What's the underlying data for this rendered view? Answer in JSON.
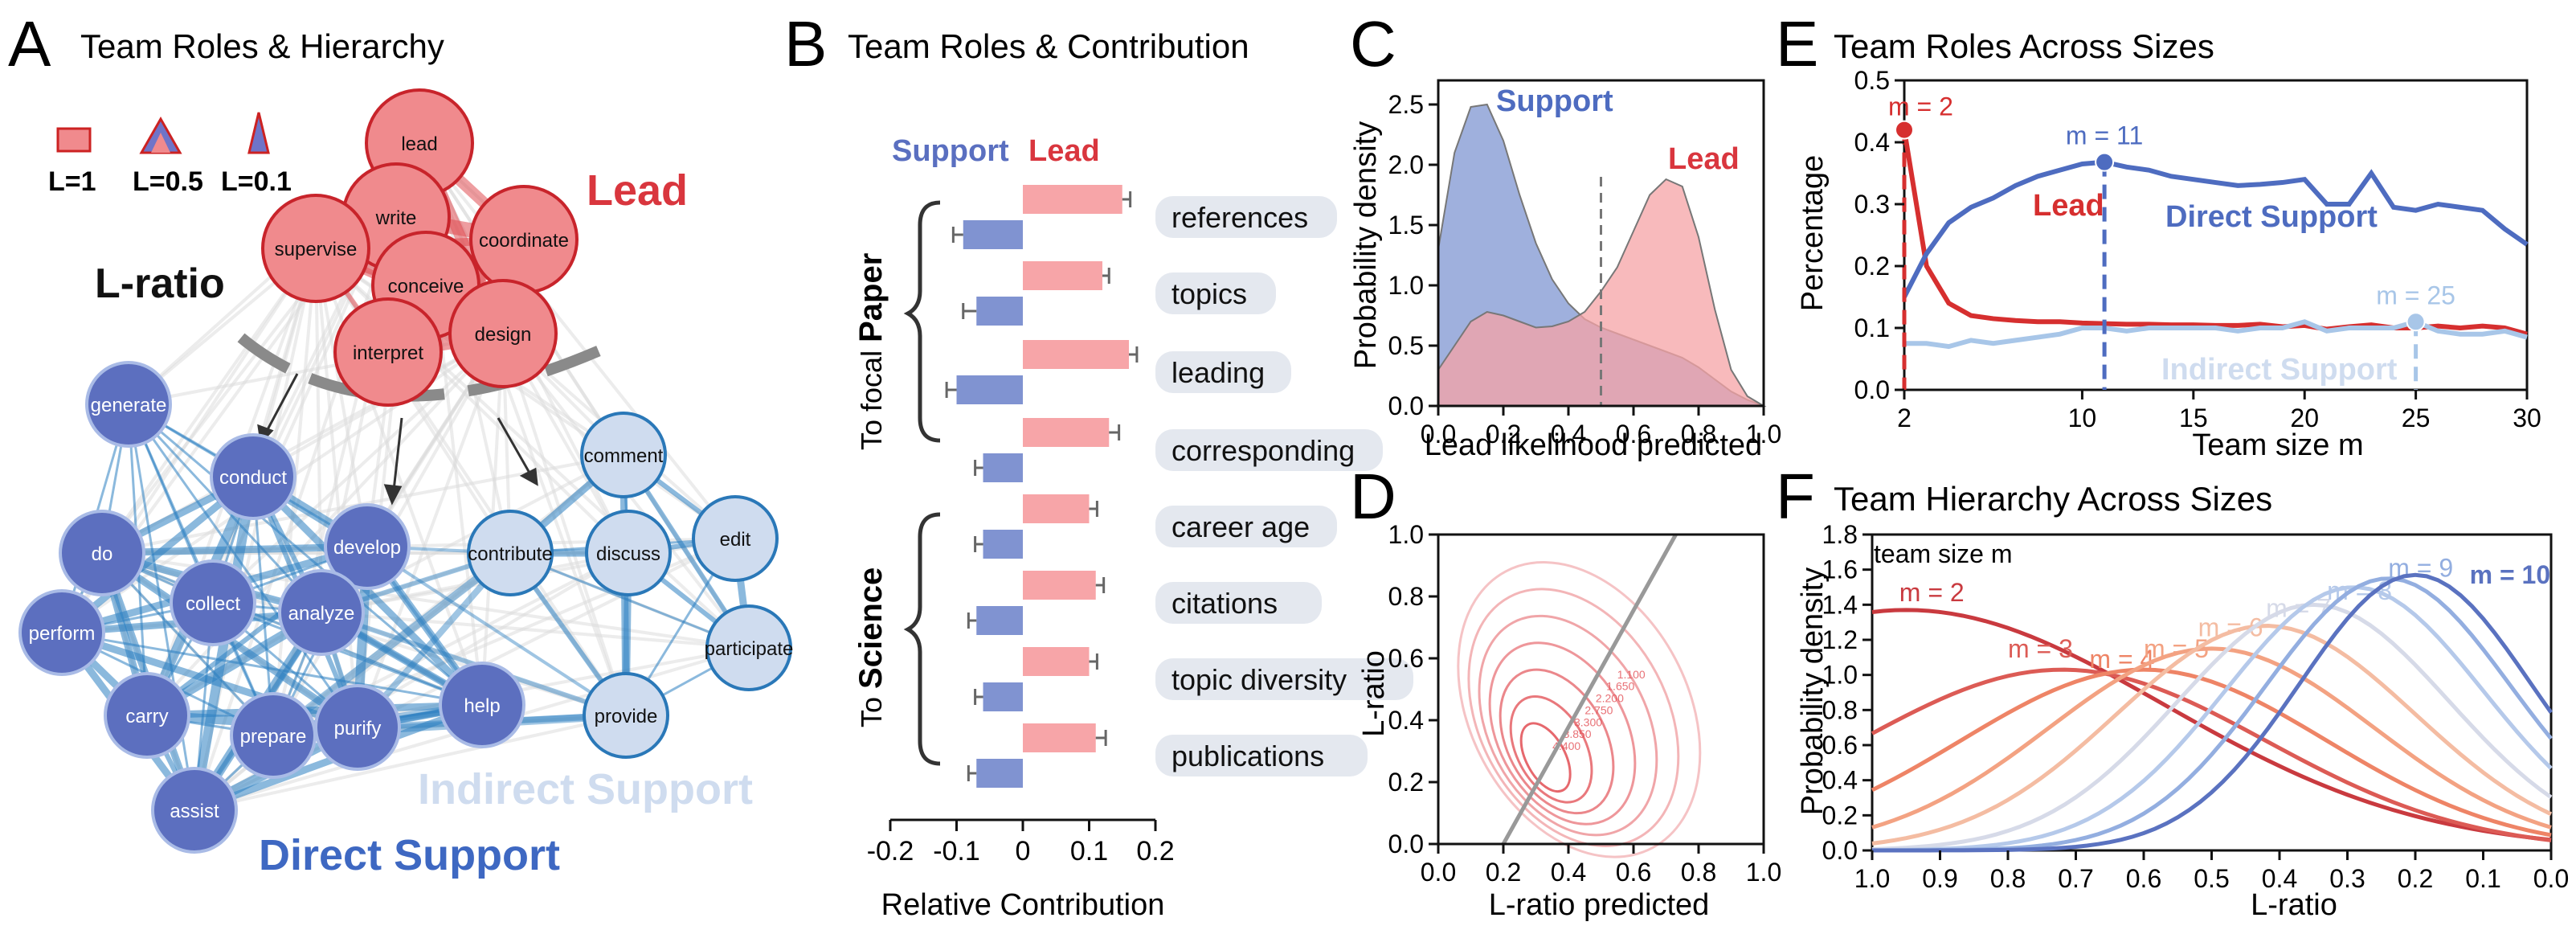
{
  "figure": {
    "panels": {
      "A": {
        "letter": "A",
        "title": "Team Roles & Hierarchy"
      },
      "B": {
        "letter": "B",
        "title": "Team Roles & Contribution"
      },
      "C": {
        "letter": "C"
      },
      "D": {
        "letter": "D"
      },
      "E": {
        "letter": "E",
        "title": "Team Roles Across Sizes"
      },
      "F": {
        "letter": "F",
        "title": "Team Hierarchy Across Sizes"
      }
    }
  },
  "panel_a": {
    "legend": [
      "L=1",
      "L=0.5",
      "L=0.1"
    ],
    "lratio_label": "L-ratio",
    "lead_label": "Lead",
    "direct_label": "Direct Support",
    "indirect_label": "Indirect Support",
    "lead_nodes": [
      "lead",
      "write",
      "coordinate",
      "supervise",
      "conceive",
      "interpret",
      "design"
    ],
    "direct_nodes": [
      "generate",
      "conduct",
      "do",
      "develop",
      "collect",
      "analyze",
      "perform",
      "carry",
      "prepare",
      "purify",
      "help",
      "assist"
    ],
    "indirect_nodes": [
      "comment",
      "edit",
      "contribute",
      "discuss",
      "participate",
      "provide"
    ],
    "colors": {
      "lead": "#f08a8d",
      "direct": "#5c6fbf",
      "indirect": "#cfdcef",
      "edge_direct": "#2b7fc1",
      "edge_lead": "#e04c52"
    }
  },
  "chart_data": [
    {
      "panel": "B",
      "type": "bar",
      "orientation": "horizontal",
      "legend": [
        "Support",
        "Lead"
      ],
      "categories": [
        "references",
        "topics",
        "leading",
        "corresponding",
        "career age",
        "citations",
        "topic diversity",
        "publications"
      ],
      "groups": [
        {
          "label_prefix": "To focal",
          "label_bold": "Paper"
        },
        {
          "label_prefix": "To",
          "label_bold": "Science"
        }
      ],
      "series": [
        {
          "name": "Support",
          "color": "#8093d1",
          "values": [
            -0.09,
            -0.07,
            -0.1,
            -0.06,
            -0.06,
            -0.07,
            -0.06,
            -0.07
          ],
          "errors": [
            0.015,
            0.02,
            0.015,
            0.012,
            0.012,
            0.012,
            0.012,
            0.012
          ]
        },
        {
          "name": "Lead",
          "color": "#f7a5a8",
          "values": [
            0.15,
            0.12,
            0.16,
            0.13,
            0.1,
            0.11,
            0.1,
            0.11
          ],
          "errors": [
            0.012,
            0.01,
            0.012,
            0.015,
            0.012,
            0.012,
            0.012,
            0.015
          ]
        }
      ],
      "xlabel": "Relative Contribution",
      "xlim": [
        -0.2,
        0.2
      ],
      "xticks": [
        "-0.2",
        "-0.1",
        "0",
        "0.1",
        "0.2"
      ]
    },
    {
      "panel": "C",
      "type": "area",
      "xlabel": "Lead likelihood predicted",
      "ylabel": "Probability density",
      "xlim": [
        0,
        1
      ],
      "ylim": [
        0,
        2.7
      ],
      "xticks": [
        "0.0",
        "0.2",
        "0.4",
        "0.6",
        "0.8",
        "1.0"
      ],
      "yticks": [
        "0.0",
        "0.5",
        "1.0",
        "1.5",
        "2.0",
        "2.5"
      ],
      "threshold": 0.5,
      "series": [
        {
          "name": "Support",
          "color": "#7f95d1",
          "x": [
            0,
            0.05,
            0.1,
            0.15,
            0.2,
            0.25,
            0.3,
            0.35,
            0.4,
            0.45,
            0.5,
            0.55,
            0.6,
            0.65,
            0.7,
            0.75,
            0.8,
            0.85,
            0.9,
            0.95,
            1.0
          ],
          "y": [
            1.3,
            2.1,
            2.48,
            2.5,
            2.2,
            1.75,
            1.35,
            1.05,
            0.85,
            0.72,
            0.65,
            0.6,
            0.55,
            0.5,
            0.45,
            0.4,
            0.32,
            0.22,
            0.12,
            0.05,
            0.0
          ]
        },
        {
          "name": "Lead",
          "color": "#f6a3a6",
          "x": [
            0,
            0.05,
            0.1,
            0.15,
            0.2,
            0.25,
            0.3,
            0.35,
            0.4,
            0.45,
            0.5,
            0.55,
            0.6,
            0.65,
            0.7,
            0.75,
            0.8,
            0.85,
            0.9,
            0.95,
            1.0
          ],
          "y": [
            0.3,
            0.5,
            0.7,
            0.78,
            0.75,
            0.7,
            0.65,
            0.66,
            0.7,
            0.78,
            0.95,
            1.15,
            1.45,
            1.75,
            1.88,
            1.82,
            1.4,
            0.8,
            0.3,
            0.08,
            0.0
          ]
        }
      ]
    },
    {
      "panel": "D",
      "type": "scatter",
      "subtype": "density contour",
      "xlabel": "L-ratio predicted",
      "ylabel": "L-ratio",
      "xlim": [
        0,
        1
      ],
      "ylim": [
        0,
        1
      ],
      "xticks": [
        "0.0",
        "0.2",
        "0.4",
        "0.6",
        "0.8",
        "1.0"
      ],
      "yticks": [
        "0.0",
        "0.2",
        "0.4",
        "0.6",
        "0.8",
        "1.0"
      ],
      "contour_labels": [
        "4.400",
        "3.850",
        "3.300",
        "2.750",
        "2.200",
        "1.650",
        "1.100"
      ],
      "fit_line": {
        "x": [
          0.2,
          0.73
        ],
        "y": [
          0.0,
          1.0
        ]
      },
      "color": "#e24e54"
    },
    {
      "panel": "E",
      "type": "line",
      "xlabel": "Team size m",
      "ylabel": "Percentage",
      "xlim": [
        2,
        30
      ],
      "ylim": [
        0,
        0.5
      ],
      "xticks": [
        "2",
        "10",
        "15",
        "20",
        "25",
        "30"
      ],
      "yticks": [
        "0.0",
        "0.1",
        "0.2",
        "0.3",
        "0.4",
        "0.5"
      ],
      "x": [
        2,
        3,
        4,
        5,
        6,
        7,
        8,
        9,
        10,
        11,
        12,
        13,
        14,
        15,
        16,
        17,
        18,
        19,
        20,
        21,
        22,
        23,
        24,
        25,
        26,
        27,
        28,
        29,
        30
      ],
      "series": [
        {
          "name": "Lead",
          "color": "#d62f2f",
          "y": [
            0.42,
            0.2,
            0.14,
            0.12,
            0.115,
            0.112,
            0.11,
            0.11,
            0.108,
            0.107,
            0.106,
            0.106,
            0.105,
            0.105,
            0.104,
            0.104,
            0.106,
            0.102,
            0.104,
            0.098,
            0.102,
            0.105,
            0.1,
            0.1,
            0.103,
            0.1,
            0.103,
            0.1,
            0.09
          ]
        },
        {
          "name": "Direct Support",
          "color": "#4e6cc0",
          "y": [
            0.15,
            0.22,
            0.27,
            0.295,
            0.31,
            0.33,
            0.345,
            0.355,
            0.365,
            0.368,
            0.36,
            0.355,
            0.345,
            0.34,
            0.335,
            0.33,
            0.332,
            0.335,
            0.34,
            0.3,
            0.3,
            0.35,
            0.295,
            0.29,
            0.3,
            0.295,
            0.29,
            0.26,
            0.235
          ]
        },
        {
          "name": "Indirect Support",
          "color": "#a8c6e8",
          "y": [
            0.075,
            0.075,
            0.07,
            0.08,
            0.075,
            0.08,
            0.085,
            0.09,
            0.1,
            0.1,
            0.095,
            0.1,
            0.1,
            0.1,
            0.1,
            0.095,
            0.1,
            0.1,
            0.11,
            0.095,
            0.1,
            0.1,
            0.1,
            0.11,
            0.095,
            0.09,
            0.09,
            0.095,
            0.085
          ]
        }
      ],
      "markers": [
        {
          "label": "m = 2",
          "x": 2,
          "y": 0.42,
          "color": "#d62f2f"
        },
        {
          "label": "m = 11",
          "x": 11,
          "y": 0.368,
          "color": "#4e6cc0"
        },
        {
          "label": "m = 25",
          "x": 25,
          "y": 0.11,
          "color": "#a8c6e8"
        }
      ]
    },
    {
      "panel": "F",
      "type": "line",
      "xlabel": "L-ratio",
      "ylabel": "Probability density",
      "xlim": [
        1.0,
        0.0
      ],
      "ylim": [
        0,
        1.8
      ],
      "xticks": [
        "1.0",
        "0.9",
        "0.8",
        "0.7",
        "0.6",
        "0.5",
        "0.4",
        "0.3",
        "0.2",
        "0.1",
        "0.0"
      ],
      "yticks": [
        "0.0",
        "0.2",
        "0.4",
        "0.6",
        "0.8",
        "1.0",
        "1.2",
        "1.4",
        "1.6",
        "1.8"
      ],
      "legend_title": "team size m",
      "series": [
        {
          "name": "m = 2",
          "color": "#c93a3f",
          "mu": 0.95,
          "sigma": 0.38,
          "peak": 1.37
        },
        {
          "name": "m = 3",
          "color": "#dc5b55",
          "mu": 0.72,
          "sigma": 0.3,
          "peak": 1.03
        },
        {
          "name": "m = 4",
          "color": "#ee8466",
          "mu": 0.6,
          "sigma": 0.27,
          "peak": 1.03
        },
        {
          "name": "m = 5",
          "color": "#f3a282",
          "mu": 0.5,
          "sigma": 0.24,
          "peak": 1.15
        },
        {
          "name": "m = 6",
          "color": "#f4bca2",
          "mu": 0.42,
          "sigma": 0.22,
          "peak": 1.28
        },
        {
          "name": "m = 7",
          "color": "#d6dae8",
          "mu": 0.35,
          "sigma": 0.2,
          "peak": 1.4
        },
        {
          "name": "m = 8",
          "color": "#b5c9ea",
          "mu": 0.29,
          "sigma": 0.19,
          "peak": 1.5
        },
        {
          "name": "m = 9",
          "color": "#93aee0",
          "mu": 0.24,
          "sigma": 0.18,
          "peak": 1.55
        },
        {
          "name": "m = 10",
          "color": "#5a72c0",
          "mu": 0.2,
          "sigma": 0.17,
          "peak": 1.57
        }
      ]
    }
  ]
}
